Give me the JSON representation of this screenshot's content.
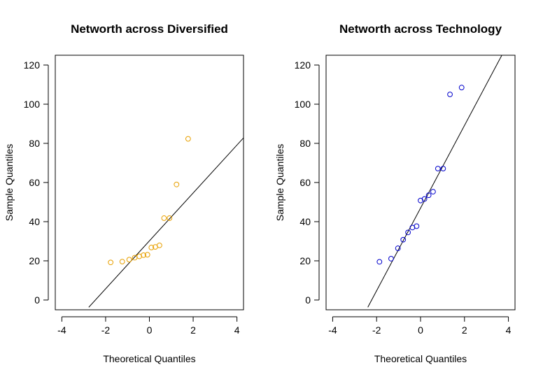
{
  "chart_data": [
    {
      "type": "scatter",
      "title": "Networth across Diversified",
      "xlabel": "Theoretical Quantiles",
      "ylabel": "Sample Quantiles",
      "xlim": [
        -4.3,
        4.3
      ],
      "ylim": [
        -5,
        125
      ],
      "x_ticks": [
        -4,
        -2,
        0,
        2,
        4
      ],
      "y_ticks": [
        0,
        20,
        40,
        60,
        80,
        100,
        120
      ],
      "point_color": "#E8A000",
      "line_color": "#000000",
      "grid": false,
      "qq_line": {
        "x1": -2.77,
        "y1": -3.7,
        "x2": 4.3,
        "y2": 82.8
      },
      "points": [
        {
          "x": -1.77,
          "y": 19.2
        },
        {
          "x": -1.24,
          "y": 19.6
        },
        {
          "x": -0.92,
          "y": 20.6
        },
        {
          "x": -0.67,
          "y": 21.6
        },
        {
          "x": -0.46,
          "y": 22.3
        },
        {
          "x": -0.27,
          "y": 22.9
        },
        {
          "x": -0.09,
          "y": 23.1
        },
        {
          "x": 0.09,
          "y": 26.8
        },
        {
          "x": 0.27,
          "y": 27.1
        },
        {
          "x": 0.46,
          "y": 27.9
        },
        {
          "x": 0.67,
          "y": 41.8
        },
        {
          "x": 0.92,
          "y": 41.8
        },
        {
          "x": 1.24,
          "y": 59.0
        },
        {
          "x": 1.77,
          "y": 82.3
        }
      ]
    },
    {
      "type": "scatter",
      "title": "Networth across Technology",
      "xlabel": "Theoretical Quantiles",
      "ylabel": "Sample Quantiles",
      "xlim": [
        -4.3,
        4.3
      ],
      "ylim": [
        -5,
        125
      ],
      "x_ticks": [
        -4,
        -2,
        0,
        2,
        4
      ],
      "y_ticks": [
        0,
        20,
        40,
        60,
        80,
        100,
        120
      ],
      "point_color": "#0000CC",
      "line_color": "#000000",
      "grid": false,
      "qq_line": {
        "x1": -2.4,
        "y1": -3.7,
        "x2": 3.7,
        "y2": 125
      },
      "points": [
        {
          "x": -1.87,
          "y": 19.5
        },
        {
          "x": -1.34,
          "y": 21.1
        },
        {
          "x": -1.03,
          "y": 26.4
        },
        {
          "x": -0.79,
          "y": 30.8
        },
        {
          "x": -0.57,
          "y": 34.5
        },
        {
          "x": -0.37,
          "y": 37.0
        },
        {
          "x": -0.18,
          "y": 37.7
        },
        {
          "x": 0.0,
          "y": 50.8
        },
        {
          "x": 0.18,
          "y": 51.6
        },
        {
          "x": 0.37,
          "y": 53.5
        },
        {
          "x": 0.57,
          "y": 55.3
        },
        {
          "x": 0.79,
          "y": 67.1
        },
        {
          "x": 1.03,
          "y": 67.1
        },
        {
          "x": 1.34,
          "y": 105.0
        },
        {
          "x": 1.87,
          "y": 108.5
        }
      ]
    }
  ]
}
